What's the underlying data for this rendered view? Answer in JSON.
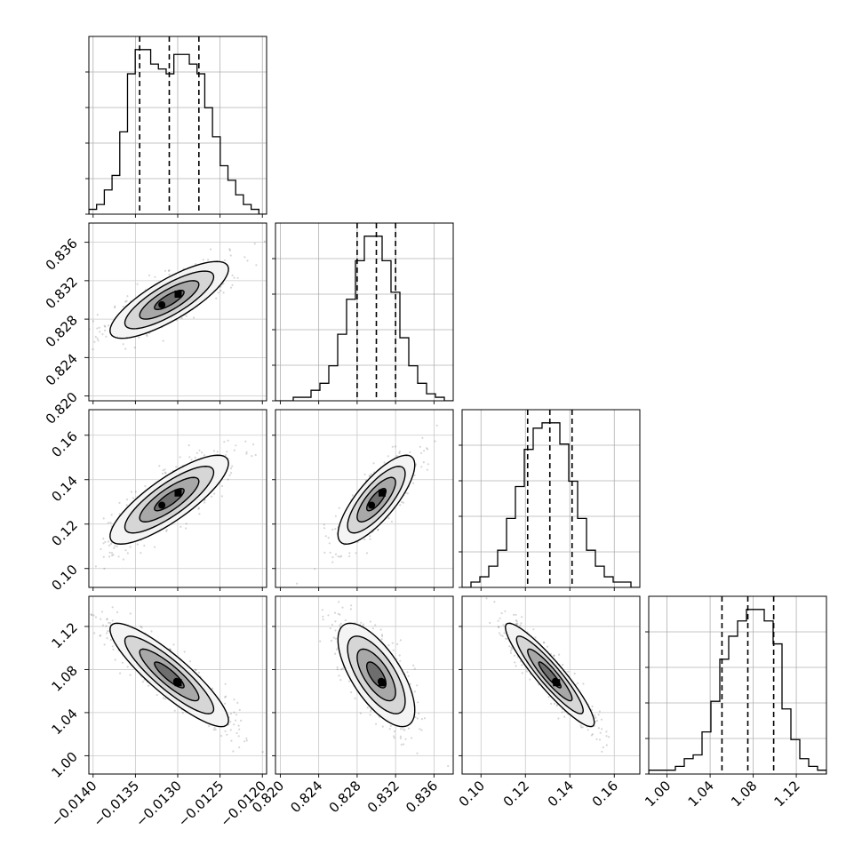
{
  "chart_data": {
    "type": "corner",
    "grid": true,
    "hist_style": "step",
    "quantile_style": "dashed",
    "contour_style": "filled grayscale density with black contour lines",
    "params": [
      {
        "range": [
          -0.01405,
          -0.01195
        ],
        "ticks": [
          -0.014,
          -0.0135,
          -0.013,
          -0.0125,
          -0.012
        ],
        "tick_labels": [
          "−0.0140",
          "−0.0135",
          "−0.0130",
          "−0.0125",
          "−0.0120"
        ],
        "quantiles": [
          -0.01345,
          -0.0131,
          -0.01275
        ],
        "hist": [
          1,
          2,
          5,
          8,
          17,
          29,
          34,
          34,
          31,
          30,
          29,
          33,
          33,
          31,
          29,
          22,
          16,
          10,
          7,
          4,
          2,
          1,
          0
        ]
      },
      {
        "range": [
          0.8195,
          0.838
        ],
        "ticks": [
          0.82,
          0.824,
          0.828,
          0.832,
          0.836
        ],
        "tick_labels": [
          "0.820",
          "0.824",
          "0.828",
          "0.832",
          "0.836"
        ],
        "quantiles": [
          0.828,
          0.83,
          0.832
        ],
        "hist": [
          0,
          0,
          1,
          1,
          3,
          5,
          10,
          19,
          29,
          40,
          47,
          47,
          40,
          31,
          18,
          10,
          5,
          2,
          1,
          0
        ]
      },
      {
        "range": [
          0.0915,
          0.1715
        ],
        "ticks": [
          0.1,
          0.12,
          0.14,
          0.16
        ],
        "tick_labels": [
          "0.10",
          "0.12",
          "0.14",
          "0.16"
        ],
        "quantiles": [
          0.121,
          0.131,
          0.141
        ],
        "hist": [
          0,
          1,
          2,
          4,
          7,
          13,
          19,
          26,
          30,
          31,
          31,
          27,
          20,
          13,
          7,
          4,
          2,
          1,
          1,
          0
        ]
      },
      {
        "range": [
          0.983,
          1.148
        ],
        "ticks": [
          1.0,
          1.04,
          1.08,
          1.12
        ],
        "tick_labels": [
          "1.00",
          "1.04",
          "1.08",
          "1.12"
        ],
        "quantiles": [
          1.051,
          1.075,
          1.099
        ],
        "hist": [
          1,
          1,
          1,
          2,
          4,
          5,
          11,
          19,
          30,
          36,
          40,
          43,
          43,
          40,
          34,
          17,
          9,
          4,
          2,
          1
        ]
      }
    ],
    "pairs": [
      {
        "row": 1,
        "col": 0,
        "corr": 0.8
      },
      {
        "row": 2,
        "col": 0,
        "corr": 0.82
      },
      {
        "row": 2,
        "col": 1,
        "corr": 0.78
      },
      {
        "row": 3,
        "col": 0,
        "corr": -0.88
      },
      {
        "row": 3,
        "col": 1,
        "corr": -0.68
      },
      {
        "row": 3,
        "col": 2,
        "corr": -0.92
      }
    ]
  }
}
